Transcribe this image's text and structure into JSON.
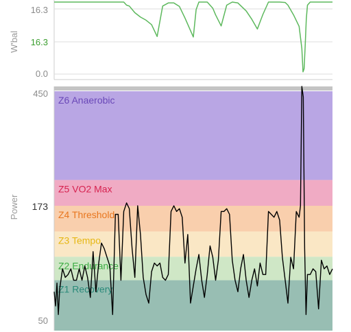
{
  "chart_data": [
    {
      "type": "line",
      "ylabel": "W'bal",
      "ylim": [
        0.0,
        16.3
      ],
      "tick_labels": [
        "16.3",
        "16.3",
        "0.0"
      ],
      "colors": {
        "line": "#5cb85c",
        "max_label": "#3a9e2e",
        "grid": "#dcdcdc"
      },
      "x": [
        0,
        25,
        26,
        27,
        29,
        31,
        33,
        35,
        37,
        39,
        41,
        43,
        45,
        47,
        50,
        51,
        52,
        55,
        57,
        58,
        60,
        62,
        64,
        66,
        69,
        71,
        73,
        75,
        77,
        79,
        81,
        83,
        84,
        86,
        88,
        89,
        89.4,
        89.8,
        90.2,
        90.6,
        91,
        92,
        94,
        100
      ],
      "series": [
        {
          "values": [
            16.3,
            16.3,
            15.6,
            15.4,
            13.9,
            12.9,
            12.2,
            11.2,
            8.5,
            15.4,
            16.1,
            16.1,
            15.3,
            12.7,
            8.4,
            14.6,
            16.3,
            16.3,
            14.9,
            13.4,
            10.9,
            15.6,
            16.3,
            16.1,
            14.3,
            12.4,
            10.2,
            13.5,
            16.3,
            16.3,
            16.3,
            16.2,
            15.6,
            13.4,
            10.8,
            5.8,
            0.5,
            1.2,
            6.5,
            12.5,
            15.6,
            16.3,
            16.3,
            16.3
          ]
        }
      ]
    },
    {
      "type": "line",
      "ylabel": "Power",
      "ylim": [
        50,
        460
      ],
      "tick_labels": [
        "450",
        "173",
        "50"
      ],
      "zones": [
        {
          "label": "Z6 Anaerobic",
          "from": 295,
          "to": 450,
          "color": "#b9a6e4",
          "text_color": "#6a48b8"
        },
        {
          "label": "Z5 VO2 Max",
          "from": 250,
          "to": 295,
          "color": "#f0abc4",
          "text_color": "#d62350"
        },
        {
          "label": "Z4 Threshold",
          "from": 205,
          "to": 250,
          "color": "#f9cfad",
          "text_color": "#e8761e"
        },
        {
          "label": "Z3 Tempo",
          "from": 161,
          "to": 205,
          "color": "#fae7c5",
          "text_color": "#e6b713"
        },
        {
          "label": "Z2 Endurance",
          "from": 120,
          "to": 161,
          "color": "#cfe7c6",
          "text_color": "#3dad45"
        },
        {
          "label": "Z1 Recovery",
          "from": 50,
          "to": 120,
          "color": "#98beb3",
          "text_color": "#2a8a7a"
        }
      ],
      "colors": {
        "line": "#000000",
        "grid": "#dcdcdc"
      },
      "x": [
        0,
        0.5,
        1,
        1.5,
        2,
        3,
        4,
        5,
        6,
        7,
        8,
        9,
        10,
        11,
        12,
        13,
        14,
        15,
        16,
        17,
        18,
        19,
        20,
        21,
        22,
        23,
        24,
        25,
        26,
        27,
        28,
        29,
        30,
        31,
        32,
        33,
        34,
        35,
        36,
        37,
        38,
        39,
        40,
        41,
        42,
        43,
        44,
        45,
        46,
        47,
        48,
        49,
        50,
        51,
        52,
        53,
        54,
        55,
        56,
        57,
        58,
        59,
        60,
        61,
        62,
        63,
        64,
        65,
        66,
        67,
        68,
        69,
        70,
        71,
        72,
        73,
        74,
        75,
        76,
        77,
        78,
        79,
        80,
        81,
        82,
        83,
        84,
        85,
        86,
        87,
        88,
        88.5,
        89,
        89.5,
        90,
        90.5,
        91,
        92,
        93,
        94,
        95,
        96,
        97,
        98,
        99,
        100
      ],
      "series": [
        {
          "values": [
            100,
            75,
            115,
            60,
            105,
            140,
            125,
            130,
            140,
            120,
            120,
            140,
            120,
            145,
            125,
            90,
            170,
            100,
            150,
            185,
            175,
            160,
            145,
            60,
            235,
            235,
            120,
            240,
            255,
            245,
            175,
            125,
            250,
            200,
            125,
            95,
            80,
            135,
            150,
            145,
            150,
            125,
            120,
            130,
            240,
            250,
            240,
            245,
            230,
            150,
            200,
            80,
            110,
            140,
            165,
            120,
            90,
            130,
            180,
            160,
            120,
            155,
            240,
            240,
            245,
            235,
            155,
            120,
            100,
            140,
            165,
            120,
            90,
            120,
            140,
            110,
            150,
            130,
            130,
            240,
            235,
            230,
            240,
            225,
            160,
            120,
            80,
            160,
            140,
            240,
            230,
            250,
            470,
            440,
            175,
            60,
            130,
            130,
            140,
            135,
            70,
            155,
            140,
            145,
            130,
            140
          ]
        }
      ]
    }
  ]
}
